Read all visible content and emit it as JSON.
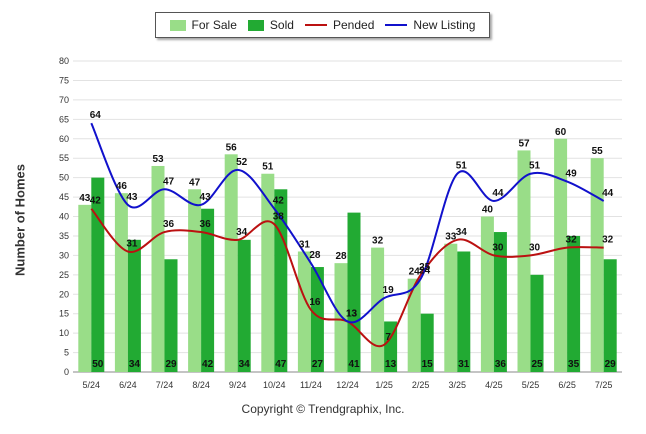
{
  "chart_data": {
    "type": "bar",
    "ylabel": "Number of Homes",
    "xlabel": "",
    "ylim": [
      0,
      80
    ],
    "ytick_step": 5,
    "grid": true,
    "legend_position": "top-center",
    "categories": [
      "5/24",
      "6/24",
      "7/24",
      "8/24",
      "9/24",
      "10/24",
      "11/24",
      "12/24",
      "1/25",
      "2/25",
      "3/25",
      "4/25",
      "5/25",
      "6/25",
      "7/25"
    ],
    "series": [
      {
        "name": "For Sale",
        "kind": "bar",
        "color": "#99dd88",
        "values": [
          43,
          46,
          53,
          47,
          56,
          51,
          31,
          28,
          32,
          24,
          33,
          40,
          57,
          60,
          55
        ]
      },
      {
        "name": "Sold",
        "kind": "bar",
        "color": "#22aa33",
        "values": [
          50,
          34,
          29,
          42,
          34,
          47,
          27,
          41,
          13,
          15,
          31,
          36,
          25,
          35,
          29
        ]
      },
      {
        "name": "Pended",
        "kind": "line",
        "color": "#bb1111",
        "values": [
          42,
          31,
          36,
          36,
          34,
          38,
          16,
          13,
          7,
          25,
          34,
          30,
          30,
          32,
          32
        ]
      },
      {
        "name": "New Listing",
        "kind": "line",
        "color": "#1111cc",
        "values": [
          64,
          43,
          47,
          43,
          52,
          42,
          28,
          13,
          19,
          24,
          51,
          44,
          51,
          49,
          44
        ]
      }
    ]
  },
  "footer": {
    "copyright": "Copyright © Trendgraphix, Inc."
  }
}
